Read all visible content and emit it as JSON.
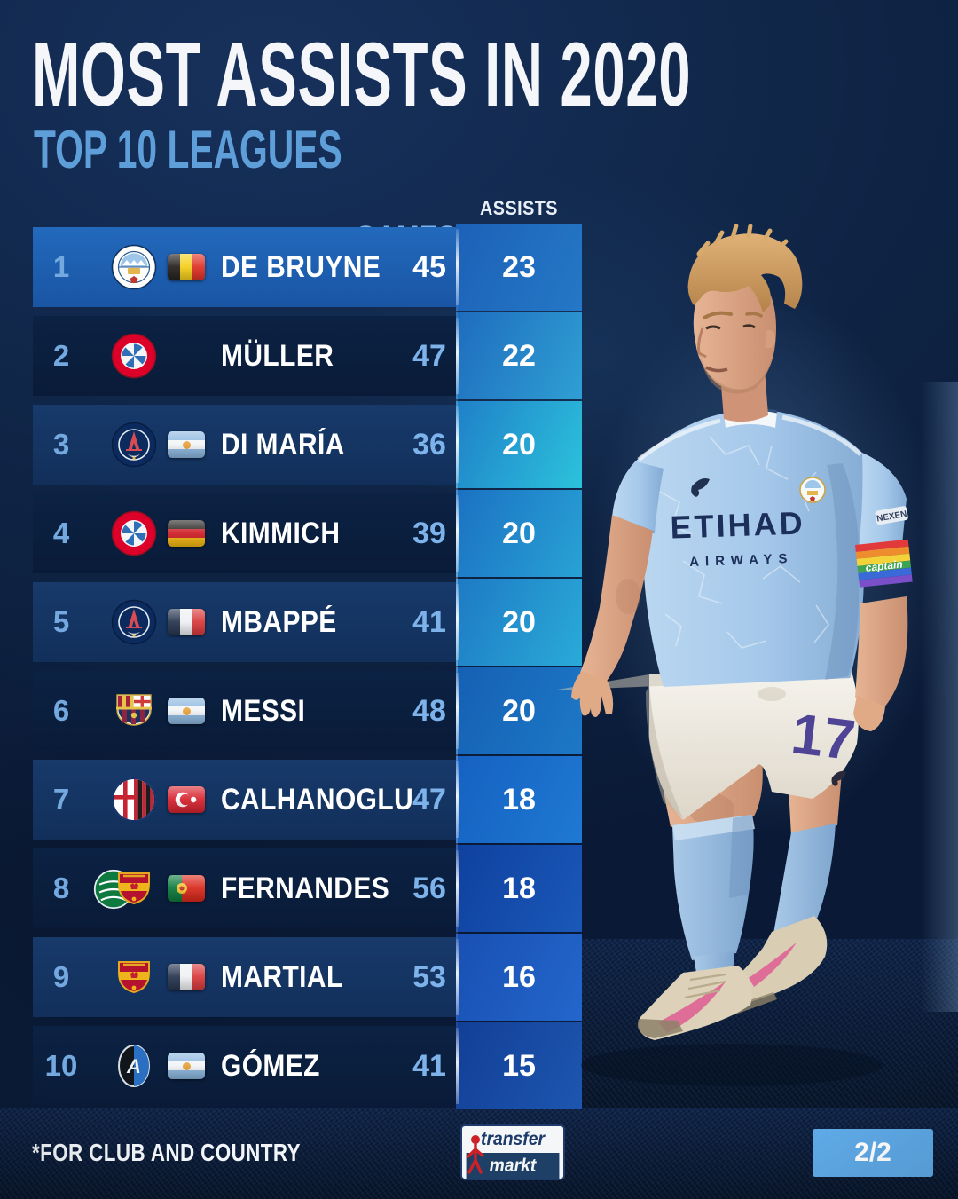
{
  "header": {
    "title": "MOST ASSISTS IN 2020",
    "subtitle": "TOP 10 LEAGUES"
  },
  "table": {
    "columns": {
      "games": "GAMES",
      "assists": "ASSISTS"
    },
    "rows": [
      {
        "rank": "1",
        "player": "DE BRUYNE",
        "club": "manchester-city",
        "flag": "belgium",
        "games": "45",
        "assists": "23",
        "highlight": true
      },
      {
        "rank": "2",
        "player": "MÜLLER",
        "club": "bayern",
        "flag": null,
        "games": "47",
        "assists": "22"
      },
      {
        "rank": "3",
        "player": "DI MARÍA",
        "club": "psg",
        "flag": "argentina",
        "games": "36",
        "assists": "20"
      },
      {
        "rank": "4",
        "player": "KIMMICH",
        "club": "bayern",
        "flag": "germany",
        "games": "39",
        "assists": "20"
      },
      {
        "rank": "5",
        "player": "MBAPPÉ",
        "club": "psg",
        "flag": "france",
        "games": "41",
        "assists": "20"
      },
      {
        "rank": "6",
        "player": "MESSI",
        "club": "barcelona",
        "flag": "argentina",
        "games": "48",
        "assists": "20"
      },
      {
        "rank": "7",
        "player": "CALHANOGLU",
        "club": "ac-milan",
        "flag": "turkey",
        "games": "47",
        "assists": "18"
      },
      {
        "rank": "8",
        "player": "FERNANDES",
        "club": "manchester-united",
        "club_secondary": "sporting",
        "flag": "portugal",
        "games": "56",
        "assists": "18"
      },
      {
        "rank": "9",
        "player": "MARTIAL",
        "club": "manchester-united",
        "flag": "france",
        "games": "53",
        "assists": "16"
      },
      {
        "rank": "10",
        "player": "GÓMEZ",
        "club": "atalanta",
        "flag": "argentina",
        "games": "41",
        "assists": "15"
      }
    ]
  },
  "player_graphic": {
    "jersey_sponsor": "ETIHAD",
    "jersey_sponsor_sub": "AIRWAYS",
    "shorts_number": "17",
    "armband_label": "captain",
    "sleeve_patch": "NEXEN"
  },
  "footer": {
    "note": "*FOR CLUB AND COUNTRY",
    "brand_top": "transfer",
    "brand_bottom": "markt",
    "page_indicator": "2/2"
  },
  "colors": {
    "accent_blue": "#5e9fd9",
    "rank_blue": "#74a9e0",
    "games_blue": "#7db3ea",
    "badge_bg": "#5ea9e6",
    "highlight_row": "#1e63b4",
    "background": "#0e2343",
    "assist_tiles": [
      {
        "from": "#1d61b8",
        "to": "#2478c6"
      },
      {
        "from": "#1e6cbd",
        "to": "#2f9fd4"
      },
      {
        "from": "#1f80c8",
        "to": "#2cc2dc"
      },
      {
        "from": "#1b71c2",
        "to": "#28a2d5"
      },
      {
        "from": "#1e7ac4",
        "to": "#2aaad8"
      },
      {
        "from": "#1560b4",
        "to": "#1d78c6"
      },
      {
        "from": "#1561c2",
        "to": "#1f79d2"
      },
      {
        "from": "#0f419f",
        "to": "#1a58b8"
      },
      {
        "from": "#1950b2",
        "to": "#2366cc"
      },
      {
        "from": "#123f96",
        "to": "#1d56b0"
      }
    ]
  }
}
